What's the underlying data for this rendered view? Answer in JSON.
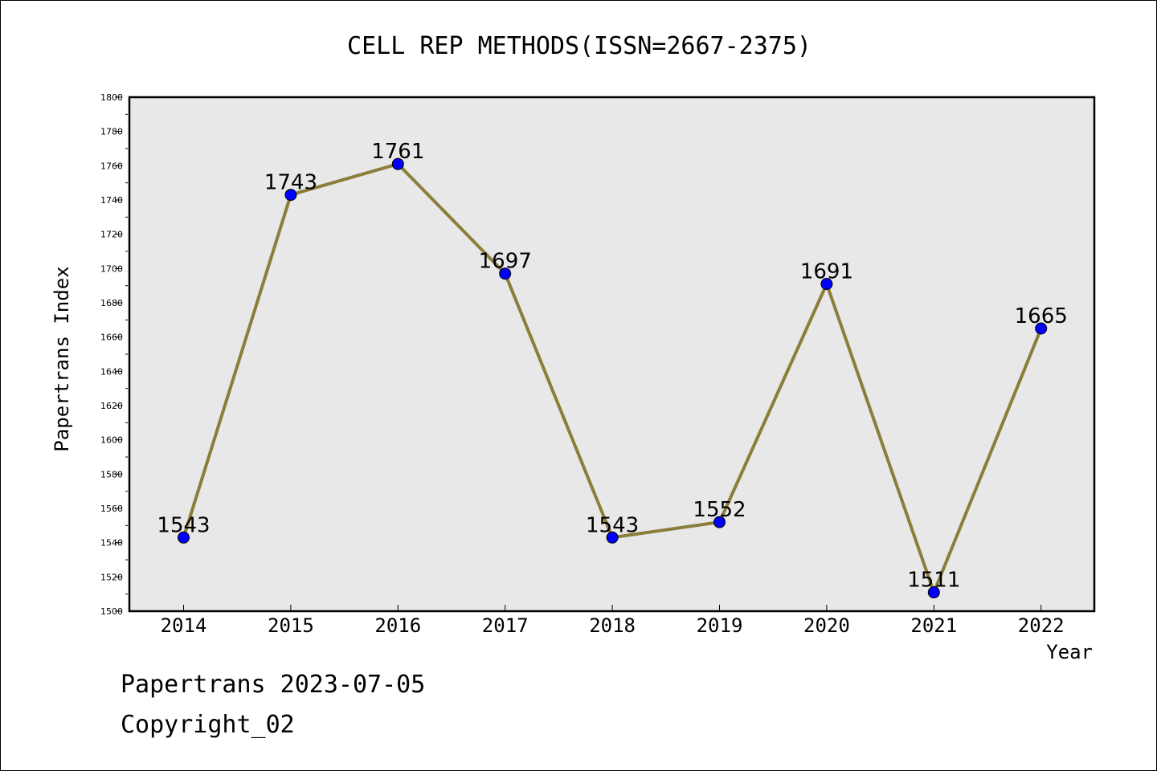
{
  "chart_data": {
    "type": "line",
    "title": "CELL REP METHODS(ISSN=2667-2375)",
    "xlabel": "Year",
    "ylabel": "Papertrans Index",
    "categories": [
      "2014",
      "2015",
      "2016",
      "2017",
      "2018",
      "2019",
      "2020",
      "2021",
      "2022"
    ],
    "series": [
      {
        "values": [
          1543,
          1743,
          1761,
          1697,
          1543,
          1552,
          1691,
          1511,
          1665
        ]
      }
    ],
    "ylim": [
      1500,
      1800
    ],
    "yticks": [
      "1500",
      "1520",
      "1540",
      "1560",
      "1580",
      "1600",
      "1620",
      "1640",
      "1660",
      "1680",
      "1700",
      "1720",
      "1740",
      "1760",
      "1780",
      "1800"
    ],
    "data_labels": [
      "1543",
      "1743",
      "1761",
      "1697",
      "1543",
      "1552",
      "1691",
      "1511",
      "1665"
    ],
    "grid": false,
    "plot_background": "#e8e8e8",
    "line_color": "#8b7d3a",
    "marker_color": "#0000ff"
  },
  "footer": {
    "date": "Papertrans 2023-07-05",
    "copyright": "Copyright_02"
  }
}
